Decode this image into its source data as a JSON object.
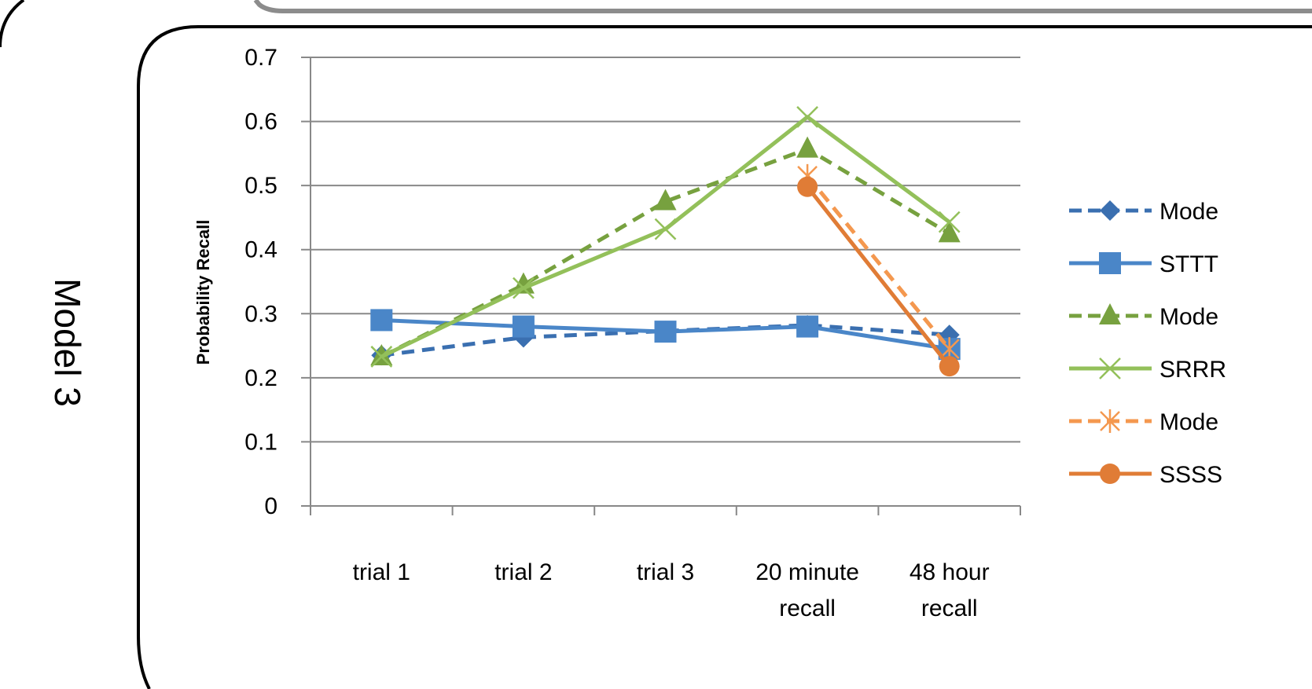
{
  "side_label": "Model 3",
  "chart_data": {
    "type": "line",
    "categories": [
      "trial 1",
      "trial 2",
      "trial 3",
      "20 minute recall",
      "48 hour recall"
    ],
    "category_lines": [
      [
        "trial 1"
      ],
      [
        "trial 2"
      ],
      [
        "trial 3"
      ],
      [
        "20 minute",
        "recall"
      ],
      [
        "48 hour",
        "recall"
      ]
    ],
    "ylabel": "Probability Recall",
    "xlabel": "",
    "ylim": [
      0,
      0.7
    ],
    "yticks": [
      "0",
      "0.1",
      "0.2",
      "0.3",
      "0.4",
      "0.5",
      "0.6",
      "0.7"
    ],
    "grid": true,
    "legend_position": "right",
    "series": [
      {
        "name": "Mode",
        "values": [
          0.235,
          0.263,
          0.273,
          0.282,
          0.267
        ],
        "color": "#3a6fb0",
        "dash": true,
        "marker": "diamond"
      },
      {
        "name": "STTT",
        "values": [
          0.29,
          0.28,
          0.272,
          0.28,
          0.245
        ],
        "color": "#4a86c8",
        "dash": false,
        "marker": "square"
      },
      {
        "name": "Mode",
        "values": [
          0.233,
          0.345,
          0.475,
          0.557,
          0.425
        ],
        "color": "#77a13f",
        "dash": true,
        "marker": "triangle"
      },
      {
        "name": "SRRR",
        "values": [
          0.233,
          0.34,
          0.432,
          0.607,
          0.443
        ],
        "color": "#93c05a",
        "dash": false,
        "marker": "x"
      },
      {
        "name": "Mode",
        "values": [
          null,
          null,
          null,
          0.515,
          0.245
        ],
        "color": "#f4984f",
        "dash": true,
        "marker": "asterisk"
      },
      {
        "name": "SSSS",
        "values": [
          null,
          null,
          null,
          0.498,
          0.218
        ],
        "color": "#e07c36",
        "dash": false,
        "marker": "circle"
      }
    ]
  }
}
